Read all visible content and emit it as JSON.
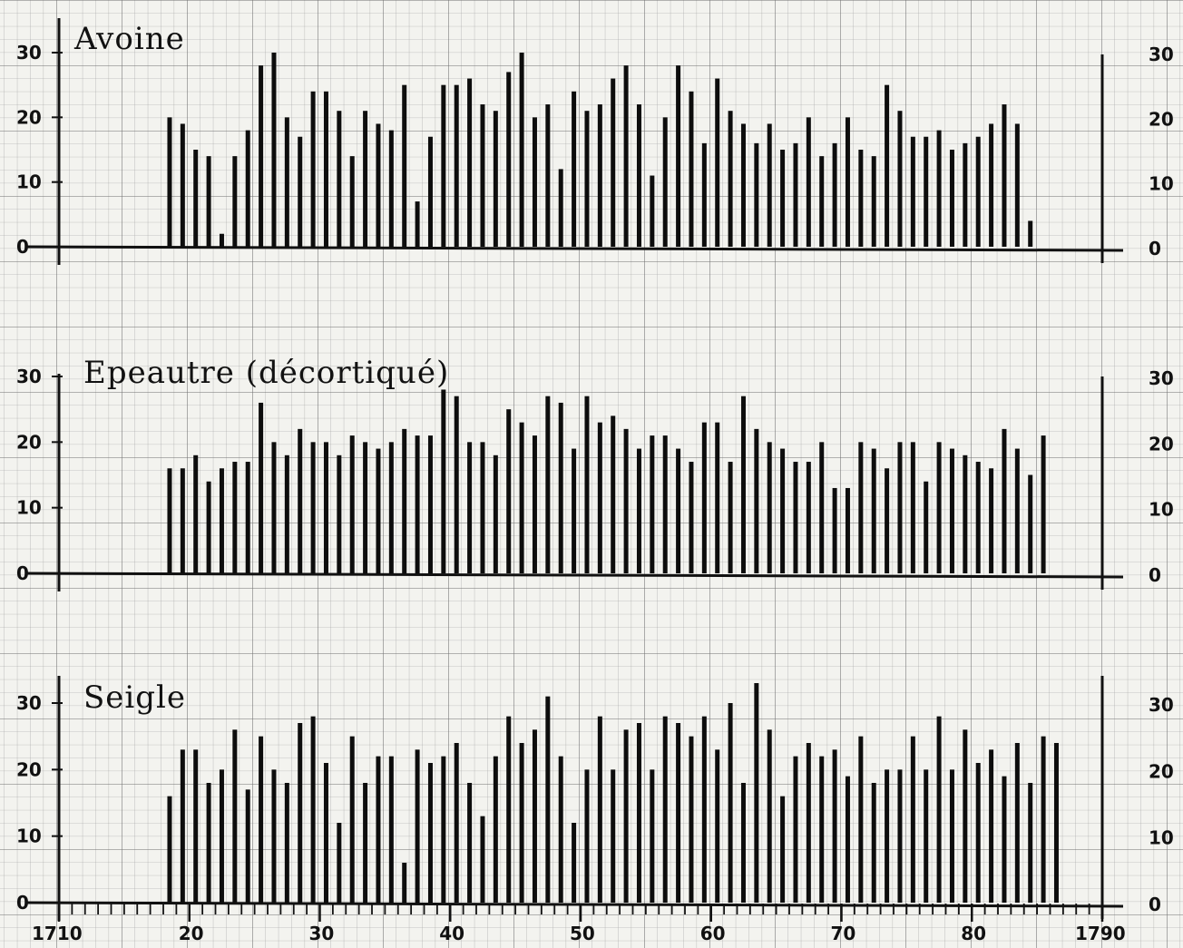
{
  "chart_data": [
    {
      "type": "bar",
      "title": "Avoine",
      "x_start": 1718,
      "xlim": [
        1710,
        1790
      ],
      "ylim": [
        0,
        30
      ],
      "yticks": [
        "0",
        "10",
        "20",
        "30"
      ],
      "grid": true,
      "values": [
        20,
        19,
        15,
        14,
        2,
        14,
        18,
        28,
        30,
        20,
        17,
        24,
        24,
        21,
        14,
        21,
        19,
        18,
        25,
        7,
        17,
        25,
        25,
        26,
        22,
        21,
        27,
        30,
        20,
        22,
        12,
        24,
        21,
        22,
        26,
        28,
        22,
        11,
        20,
        28,
        24,
        16,
        26,
        21,
        19,
        16,
        19,
        15,
        16,
        20,
        14,
        16,
        20,
        15,
        14,
        25,
        21,
        17,
        17,
        18,
        15,
        16,
        17,
        19,
        22,
        19,
        4
      ]
    },
    {
      "type": "bar",
      "title": "Epeautre (décortiqué)",
      "x_start": 1718,
      "xlim": [
        1710,
        1790
      ],
      "ylim": [
        0,
        30
      ],
      "yticks": [
        "0",
        "10",
        "20",
        "30"
      ],
      "grid": true,
      "values": [
        16,
        16,
        18,
        14,
        16,
        17,
        17,
        26,
        20,
        18,
        22,
        20,
        20,
        18,
        21,
        20,
        19,
        20,
        22,
        21,
        21,
        28,
        27,
        20,
        20,
        18,
        25,
        23,
        21,
        27,
        26,
        19,
        27,
        23,
        24,
        22,
        19,
        21,
        21,
        19,
        17,
        23,
        23,
        17,
        27,
        22,
        20,
        19,
        17,
        17,
        20,
        13,
        13,
        20,
        19,
        16,
        20,
        20,
        14,
        20,
        19,
        18,
        17,
        16,
        22,
        19,
        15,
        21
      ],
      "gaps_after_index": [
        58
      ]
    },
    {
      "type": "bar",
      "title": "Seigle",
      "x_start": 1718,
      "xlim": [
        1710,
        1790
      ],
      "ylim": [
        0,
        30
      ],
      "yticks": [
        "0",
        "10",
        "20",
        "30"
      ],
      "xticks": [
        "1710",
        "20",
        "30",
        "40",
        "50",
        "60",
        "70",
        "80",
        "1790"
      ],
      "grid": true,
      "values": [
        16,
        23,
        23,
        18,
        20,
        26,
        17,
        25,
        20,
        18,
        27,
        28,
        21,
        12,
        25,
        18,
        22,
        22,
        6,
        23,
        21,
        22,
        24,
        18,
        13,
        22,
        28,
        24,
        26,
        31,
        22,
        12,
        20,
        28,
        20,
        26,
        27,
        20,
        28,
        27,
        25,
        28,
        23,
        30,
        18,
        33,
        26,
        16,
        22,
        24,
        22,
        23,
        19,
        25,
        18,
        20,
        20,
        25,
        20,
        28,
        20,
        26,
        21,
        23,
        19,
        24,
        18,
        25,
        24
      ]
    }
  ]
}
